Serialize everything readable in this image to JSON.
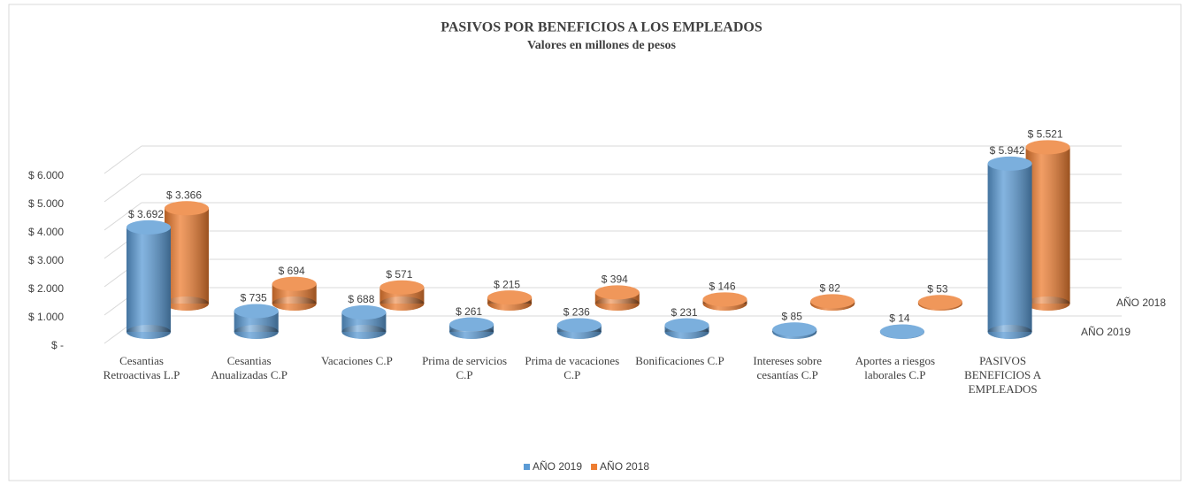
{
  "chart_data": {
    "type": "bar3d",
    "title": "PASIVOS POR BENEFICIOS A LOS EMPLEADOS",
    "subtitle": "Valores en millones  de pesos",
    "categories": [
      "Cesantias Retroactivas L.P",
      "Cesantias Anualizadas C.P",
      "Vacaciones C.P",
      "Prima de servicios C.P",
      "Prima de vacaciones C.P",
      "Bonificaciones C.P",
      "Intereses sobre cesantías C.P",
      "Aportes a riesgos laborales C.P",
      "PASIVOS BENEFICIOS A EMPLEADOS"
    ],
    "series": [
      {
        "name": "AÑO 2019",
        "color": "#5b9bd5",
        "values": [
          3692,
          735,
          688,
          261,
          236,
          231,
          85,
          14,
          5942
        ],
        "value_labels": [
          "$ 3.692",
          "$ 735",
          "$ 688",
          "$ 261",
          "$ 236",
          "$ 231",
          "$ 85",
          "$ 14",
          "$ 5.942"
        ]
      },
      {
        "name": "AÑO 2018",
        "color": "#ed7d31",
        "values": [
          3366,
          694,
          571,
          215,
          394,
          146,
          82,
          53,
          5521
        ],
        "value_labels": [
          "$ 3.366",
          "$ 694",
          "$ 571",
          "$ 215",
          "$ 394",
          "$ 146",
          "$ 82",
          "$ 53",
          "$ 5.521"
        ]
      }
    ],
    "ylim": [
      0,
      6000
    ],
    "yticks": [
      {
        "value": 0,
        "label": "$ -"
      },
      {
        "value": 1000,
        "label": "$ 1.000"
      },
      {
        "value": 2000,
        "label": "$ 2.000"
      },
      {
        "value": 3000,
        "label": "$ 3.000"
      },
      {
        "value": 4000,
        "label": "$ 4.000"
      },
      {
        "value": 5000,
        "label": "$ 5.000"
      },
      {
        "value": 6000,
        "label": "$ 6.000"
      }
    ],
    "grid": true,
    "legend": "bottom"
  }
}
